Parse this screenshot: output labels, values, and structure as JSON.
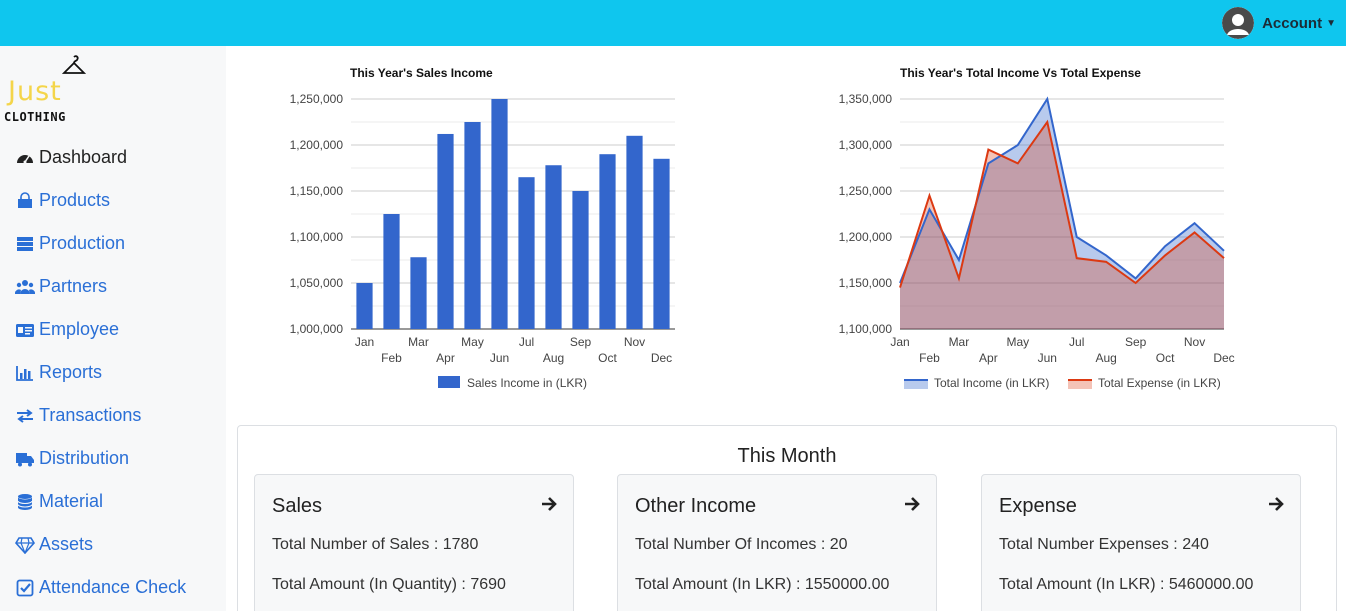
{
  "header": {
    "account_label": "Account",
    "avatar_icon": "user-avatar-icon",
    "background_color": "#0fc6ee"
  },
  "logo": {
    "line1": "Just",
    "line2": "CLOTHING",
    "accent_color": "#f4d54a"
  },
  "sidebar": {
    "items": [
      {
        "label": "Dashboard",
        "icon": "gauge-icon",
        "active": true
      },
      {
        "label": "Products",
        "icon": "shopping-bag-icon",
        "active": false
      },
      {
        "label": "Production",
        "icon": "server-rack-icon",
        "active": false
      },
      {
        "label": "Partners",
        "icon": "users-icon",
        "active": false
      },
      {
        "label": "Employee",
        "icon": "id-card-icon",
        "active": false
      },
      {
        "label": "Reports",
        "icon": "bar-chart-icon",
        "active": false
      },
      {
        "label": "Transactions",
        "icon": "exchange-arrows-icon",
        "active": false
      },
      {
        "label": "Distribution",
        "icon": "truck-icon",
        "active": false
      },
      {
        "label": "Material",
        "icon": "database-icon",
        "active": false
      },
      {
        "label": "Assets",
        "icon": "diamond-icon",
        "active": false
      },
      {
        "label": "Attendance Check",
        "icon": "checkbox-icon",
        "active": false
      }
    ],
    "link_color": "#2a6fd6"
  },
  "chart_data": [
    {
      "type": "bar",
      "title": "This Year's Sales Income",
      "categories": [
        "Jan",
        "Feb",
        "Mar",
        "Apr",
        "May",
        "Jun",
        "Jul",
        "Aug",
        "Sep",
        "Oct",
        "Nov",
        "Dec"
      ],
      "series": [
        {
          "name": "Sales Income in (LKR)",
          "color": "#3366cc",
          "values": [
            1050000,
            1125000,
            1078000,
            1212000,
            1225000,
            1250000,
            1165000,
            1178000,
            1150000,
            1190000,
            1210000,
            1185000
          ]
        }
      ],
      "yticks": [
        "1,000,000",
        "1,050,000",
        "1,100,000",
        "1,150,000",
        "1,200,000",
        "1,250,000"
      ],
      "ylim": [
        1000000,
        1250000
      ],
      "grid": true,
      "legend": "bottom"
    },
    {
      "type": "area",
      "title": "This Year's Total Income Vs Total Expense",
      "categories": [
        "Jan",
        "Feb",
        "Mar",
        "Apr",
        "May",
        "Jun",
        "Jul",
        "Aug",
        "Sep",
        "Oct",
        "Nov",
        "Dec"
      ],
      "series": [
        {
          "name": "Total Income (in LKR)",
          "color": "#3366cc",
          "values": [
            1150000,
            1230000,
            1175000,
            1280000,
            1300000,
            1350000,
            1200000,
            1180000,
            1155000,
            1190000,
            1215000,
            1185000
          ]
        },
        {
          "name": "Total Expense (in LKR)",
          "color": "#dc3912",
          "values": [
            1145000,
            1245000,
            1155000,
            1295000,
            1280000,
            1325000,
            1177000,
            1173000,
            1150000,
            1180000,
            1205000,
            1177000
          ]
        }
      ],
      "yticks": [
        "1,100,000",
        "1,150,000",
        "1,200,000",
        "1,250,000",
        "1,300,000",
        "1,350,000"
      ],
      "ylim": [
        1100000,
        1350000
      ],
      "grid": true,
      "legend": "bottom"
    }
  ],
  "month": {
    "title": "This Month",
    "cards": [
      {
        "title": "Sales",
        "line1": "Total Number of Sales : 1780",
        "line2": "Total Amount (In Quantity) : 7690"
      },
      {
        "title": "Other Income",
        "line1": "Total Number Of Incomes : 20",
        "line2": "Total Amount (In LKR) : 1550000.00"
      },
      {
        "title": "Expense",
        "line1": "Total Number Expenses : 240",
        "line2": "Total Amount (In LKR) : 5460000.00"
      }
    ]
  }
}
